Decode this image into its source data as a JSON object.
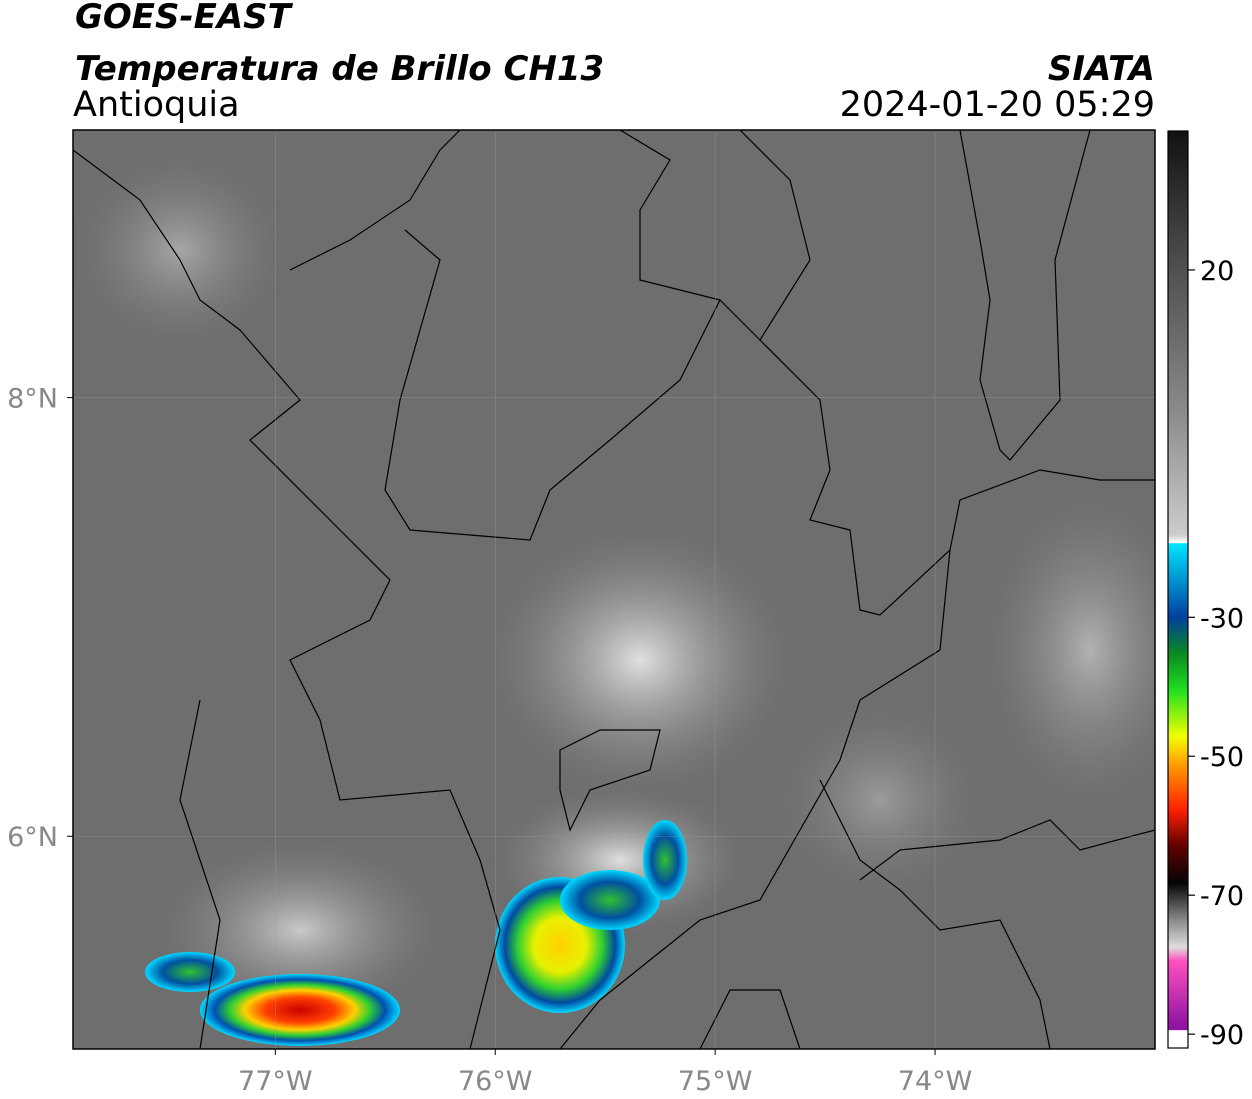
{
  "header": {
    "title": "GOES-EAST",
    "subtitle": "Temperatura de Brillo CH13",
    "region": "Antioquia",
    "source": "SIATA",
    "timestamp": "2024-01-20 05:29"
  },
  "map": {
    "xlim": [
      -77.92,
      -73.0
    ],
    "ylim": [
      5.03,
      9.22
    ],
    "xticks": [
      {
        "value": -77,
        "label": "77°W"
      },
      {
        "value": -76,
        "label": "76°W"
      },
      {
        "value": -75,
        "label": "75°W"
      },
      {
        "value": -74,
        "label": "74°W"
      }
    ],
    "yticks": [
      {
        "value": 8,
        "label": "8°N"
      },
      {
        "value": 6,
        "label": "6°N"
      }
    ],
    "grid": true
  },
  "colorbar": {
    "clim": [
      -92,
      40
    ],
    "ticks": [
      20,
      -30,
      -50,
      -70,
      -90
    ]
  }
}
